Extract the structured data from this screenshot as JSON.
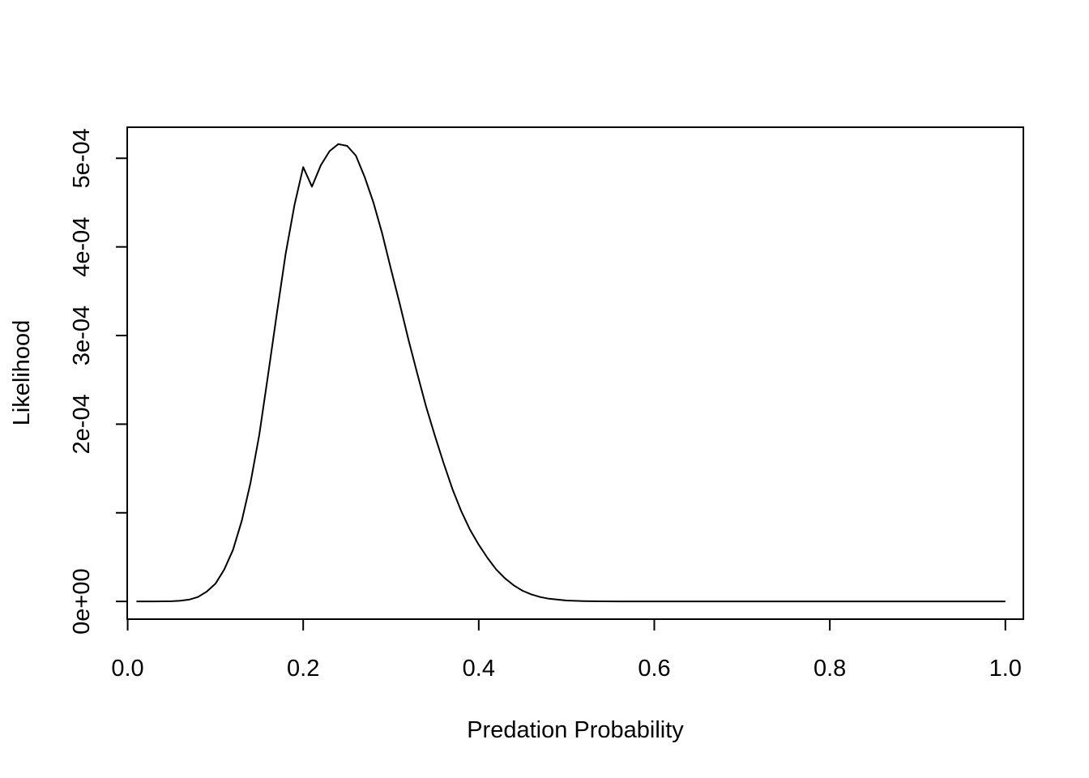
{
  "chart_data": {
    "type": "line",
    "title": "",
    "xlabel": "Predation Probability",
    "ylabel": "Likelihood",
    "xlim": [
      -0.0005,
      1.0205
    ],
    "ylim": [
      -2e-05,
      0.000535
    ],
    "x_ticks": [
      {
        "value": 0.0,
        "label": "0.0"
      },
      {
        "value": 0.2,
        "label": "0.2"
      },
      {
        "value": 0.4,
        "label": "0.4"
      },
      {
        "value": 0.6,
        "label": "0.6"
      },
      {
        "value": 0.8,
        "label": "0.8"
      },
      {
        "value": 1.0,
        "label": "1.0"
      }
    ],
    "y_ticks": [
      {
        "value": 0.0,
        "label": "0e+00"
      },
      {
        "value": 0.0001,
        "label": ""
      },
      {
        "value": 0.0002,
        "label": "2e-04"
      },
      {
        "value": 0.0003,
        "label": "3e-04"
      },
      {
        "value": 0.0004,
        "label": "4e-04"
      },
      {
        "value": 0.0005,
        "label": "5e-04"
      }
    ],
    "grid": false,
    "legend": "none",
    "line_color": "#000000",
    "series": [
      {
        "x": [
          0.01,
          0.03,
          0.05,
          0.06,
          0.07,
          0.08,
          0.09,
          0.1,
          0.11,
          0.12,
          0.13,
          0.14,
          0.15,
          0.16,
          0.17,
          0.18,
          0.19,
          0.2,
          0.21,
          0.22,
          0.23,
          0.24,
          0.25,
          0.26,
          0.27,
          0.28,
          0.29,
          0.3,
          0.31,
          0.32,
          0.33,
          0.34,
          0.35,
          0.36,
          0.37,
          0.38,
          0.39,
          0.4,
          0.41,
          0.42,
          0.43,
          0.44,
          0.45,
          0.46,
          0.47,
          0.48,
          0.49,
          0.5,
          0.52,
          0.54,
          0.56,
          0.6,
          0.7,
          0.8,
          0.9,
          1.0
        ],
        "y": [
          0,
          0,
          2e-07,
          8e-07,
          2e-06,
          5e-06,
          1.1e-05,
          2e-05,
          3.6e-05,
          5.8e-05,
          9.1e-05,
          0.000134,
          0.000188,
          0.000256,
          0.000325,
          0.000392,
          0.000447,
          0.00049,
          0.000468,
          0.000492,
          0.000508,
          0.000516,
          0.000514,
          0.000503,
          0.000479,
          0.00045,
          0.000415,
          0.000375,
          0.000336,
          0.000295,
          0.000257,
          0.00022,
          0.000187,
          0.000156,
          0.000127,
          0.000102,
          8.1e-05,
          6.4e-05,
          4.9e-05,
          3.6e-05,
          2.6e-05,
          1.8e-05,
          1.2e-05,
          8e-06,
          5e-06,
          3e-06,
          2e-06,
          1e-06,
          4e-07,
          1e-07,
          0,
          0,
          0,
          0,
          0,
          0
        ]
      }
    ]
  }
}
